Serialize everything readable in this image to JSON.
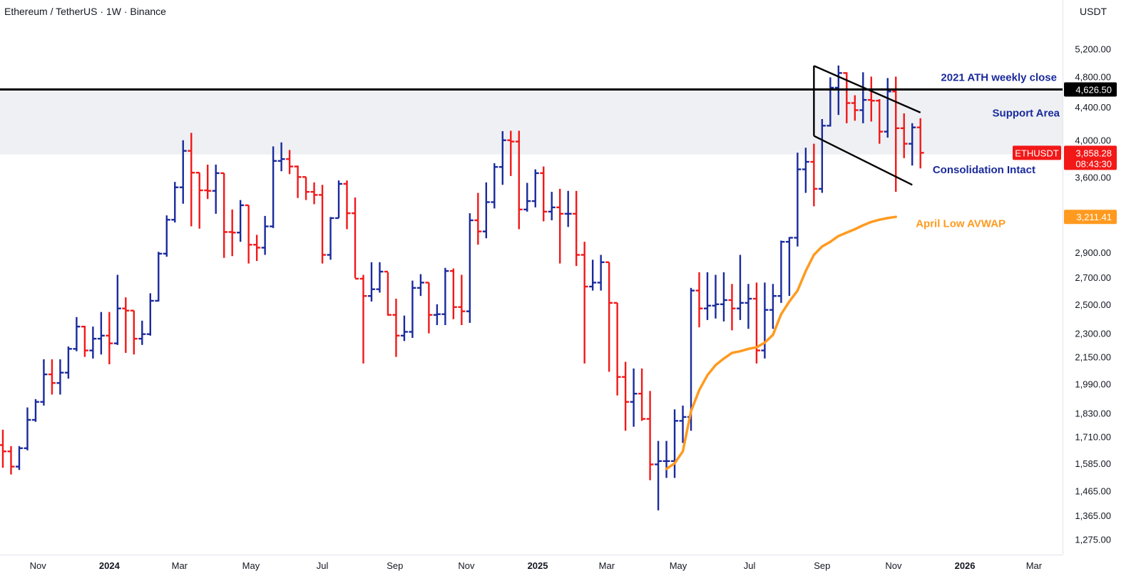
{
  "header": {
    "title": "Ethereum / TetherUS · 1W · Binance",
    "currency": "USDT"
  },
  "chart_data": {
    "type": "ohlc",
    "interval": "1W",
    "symbol": "ETHUSDT",
    "y_axis": {
      "scale": "log",
      "range": [
        1220,
        5600
      ],
      "ticks": [
        "5,200.00",
        "4,800.00",
        "4,400.00",
        "4,000.00",
        "3,600.00",
        "2,900.00",
        "2,700.00",
        "2,500.00",
        "2,300.00",
        "2,150.00",
        "1,990.00",
        "1,830.00",
        "1,710.00",
        "1,585.00",
        "1,465.00",
        "1,365.00",
        "1,275.00"
      ]
    },
    "x_axis": {
      "range": [
        "2023-10-02",
        "2026-03-23"
      ],
      "ticks": [
        {
          "label": "Nov",
          "date": "2023-11-01",
          "bold": false
        },
        {
          "label": "2024",
          "date": "2024-01-01",
          "bold": true
        },
        {
          "label": "Mar",
          "date": "2024-03-01",
          "bold": false
        },
        {
          "label": "May",
          "date": "2024-05-01",
          "bold": false
        },
        {
          "label": "Jul",
          "date": "2024-07-01",
          "bold": false
        },
        {
          "label": "Sep",
          "date": "2024-09-01",
          "bold": false
        },
        {
          "label": "Nov",
          "date": "2024-11-01",
          "bold": false
        },
        {
          "label": "2025",
          "date": "2025-01-01",
          "bold": true
        },
        {
          "label": "Mar",
          "date": "2025-03-01",
          "bold": false
        },
        {
          "label": "May",
          "date": "2025-05-01",
          "bold": false
        },
        {
          "label": "Jul",
          "date": "2025-07-01",
          "bold": false
        },
        {
          "label": "Sep",
          "date": "2025-09-01",
          "bold": false
        },
        {
          "label": "Nov",
          "date": "2025-11-01",
          "bold": false
        },
        {
          "label": "2026",
          "date": "2026-01-01",
          "bold": true
        },
        {
          "label": "Mar",
          "date": "2026-03-01",
          "bold": false
        }
      ]
    },
    "colors": {
      "up": "#1a2a9c",
      "down": "#f21818",
      "avwap": "#ff9a1f",
      "zone": "#eef0f3",
      "level": "#000000"
    },
    "ohlc": [
      {
        "date": "2023-10-02",
        "o": 1670,
        "h": 1745,
        "l": 1565,
        "c": 1640
      },
      {
        "date": "2023-10-09",
        "o": 1640,
        "h": 1665,
        "l": 1535,
        "c": 1570
      },
      {
        "date": "2023-10-16",
        "o": 1570,
        "h": 1665,
        "l": 1555,
        "c": 1655
      },
      {
        "date": "2023-10-23",
        "o": 1655,
        "h": 1860,
        "l": 1645,
        "c": 1795
      },
      {
        "date": "2023-10-30",
        "o": 1795,
        "h": 1905,
        "l": 1785,
        "c": 1890
      },
      {
        "date": "2023-11-06",
        "o": 1890,
        "h": 2135,
        "l": 1870,
        "c": 2045
      },
      {
        "date": "2023-11-13",
        "o": 2045,
        "h": 2135,
        "l": 1930,
        "c": 1995
      },
      {
        "date": "2023-11-20",
        "o": 1995,
        "h": 2135,
        "l": 1930,
        "c": 2055
      },
      {
        "date": "2023-11-27",
        "o": 2055,
        "h": 2215,
        "l": 2020,
        "c": 2200
      },
      {
        "date": "2023-12-04",
        "o": 2200,
        "h": 2410,
        "l": 2185,
        "c": 2345
      },
      {
        "date": "2023-12-11",
        "o": 2345,
        "h": 2350,
        "l": 2150,
        "c": 2190
      },
      {
        "date": "2023-12-18",
        "o": 2190,
        "h": 2345,
        "l": 2140,
        "c": 2265
      },
      {
        "date": "2023-12-25",
        "o": 2265,
        "h": 2445,
        "l": 2165,
        "c": 2285
      },
      {
        "date": "2024-01-01",
        "o": 2285,
        "h": 2445,
        "l": 2105,
        "c": 2235
      },
      {
        "date": "2024-01-08",
        "o": 2235,
        "h": 2720,
        "l": 2225,
        "c": 2470
      },
      {
        "date": "2024-01-15",
        "o": 2470,
        "h": 2550,
        "l": 2175,
        "c": 2455
      },
      {
        "date": "2024-01-22",
        "o": 2455,
        "h": 2455,
        "l": 2165,
        "c": 2265
      },
      {
        "date": "2024-01-29",
        "o": 2265,
        "h": 2385,
        "l": 2225,
        "c": 2295
      },
      {
        "date": "2024-02-05",
        "o": 2295,
        "h": 2580,
        "l": 2285,
        "c": 2525
      },
      {
        "date": "2024-02-12",
        "o": 2525,
        "h": 2905,
        "l": 2520,
        "c": 2890
      },
      {
        "date": "2024-02-19",
        "o": 2890,
        "h": 3225,
        "l": 2865,
        "c": 3185
      },
      {
        "date": "2024-02-26",
        "o": 3185,
        "h": 3550,
        "l": 3160,
        "c": 3495
      },
      {
        "date": "2024-03-04",
        "o": 3495,
        "h": 4000,
        "l": 3335,
        "c": 3880
      },
      {
        "date": "2024-03-11",
        "o": 3880,
        "h": 4085,
        "l": 3125,
        "c": 3645
      },
      {
        "date": "2024-03-18",
        "o": 3645,
        "h": 3645,
        "l": 3105,
        "c": 3465
      },
      {
        "date": "2024-03-25",
        "o": 3465,
        "h": 3730,
        "l": 3380,
        "c": 3460
      },
      {
        "date": "2024-04-01",
        "o": 3460,
        "h": 3730,
        "l": 3240,
        "c": 3640
      },
      {
        "date": "2024-04-08",
        "o": 3640,
        "h": 3640,
        "l": 2855,
        "c": 3075
      },
      {
        "date": "2024-04-15",
        "o": 3075,
        "h": 3280,
        "l": 2870,
        "c": 3070
      },
      {
        "date": "2024-04-22",
        "o": 3070,
        "h": 3370,
        "l": 2990,
        "c": 3320
      },
      {
        "date": "2024-04-29",
        "o": 3320,
        "h": 3320,
        "l": 2810,
        "c": 2965
      },
      {
        "date": "2024-05-06",
        "o": 2965,
        "h": 3050,
        "l": 2830,
        "c": 2940
      },
      {
        "date": "2024-05-13",
        "o": 2940,
        "h": 3220,
        "l": 2880,
        "c": 3125
      },
      {
        "date": "2024-05-20",
        "o": 3125,
        "h": 3930,
        "l": 3110,
        "c": 3770
      },
      {
        "date": "2024-05-27",
        "o": 3770,
        "h": 3975,
        "l": 3660,
        "c": 3790
      },
      {
        "date": "2024-06-03",
        "o": 3790,
        "h": 3890,
        "l": 3630,
        "c": 3710
      },
      {
        "date": "2024-06-10",
        "o": 3710,
        "h": 3720,
        "l": 3390,
        "c": 3600
      },
      {
        "date": "2024-06-17",
        "o": 3600,
        "h": 3600,
        "l": 3370,
        "c": 3450
      },
      {
        "date": "2024-06-24",
        "o": 3450,
        "h": 3545,
        "l": 3330,
        "c": 3420
      },
      {
        "date": "2024-07-01",
        "o": 3420,
        "h": 3520,
        "l": 2810,
        "c": 2880
      },
      {
        "date": "2024-07-08",
        "o": 2880,
        "h": 3210,
        "l": 2840,
        "c": 3200
      },
      {
        "date": "2024-07-15",
        "o": 3200,
        "h": 3565,
        "l": 3200,
        "c": 3530
      },
      {
        "date": "2024-07-22",
        "o": 3530,
        "h": 3565,
        "l": 3100,
        "c": 3245
      },
      {
        "date": "2024-07-29",
        "o": 3245,
        "h": 3395,
        "l": 2695,
        "c": 2690
      },
      {
        "date": "2024-08-05",
        "o": 2690,
        "h": 2720,
        "l": 2110,
        "c": 2560
      },
      {
        "date": "2024-08-12",
        "o": 2560,
        "h": 2820,
        "l": 2520,
        "c": 2610
      },
      {
        "date": "2024-08-19",
        "o": 2610,
        "h": 2820,
        "l": 2585,
        "c": 2745
      },
      {
        "date": "2024-08-26",
        "o": 2745,
        "h": 2740,
        "l": 2420,
        "c": 2425
      },
      {
        "date": "2024-09-02",
        "o": 2425,
        "h": 2540,
        "l": 2150,
        "c": 2285
      },
      {
        "date": "2024-09-09",
        "o": 2285,
        "h": 2420,
        "l": 2250,
        "c": 2310
      },
      {
        "date": "2024-09-16",
        "o": 2310,
        "h": 2675,
        "l": 2270,
        "c": 2620
      },
      {
        "date": "2024-09-23",
        "o": 2620,
        "h": 2725,
        "l": 2560,
        "c": 2660
      },
      {
        "date": "2024-09-30",
        "o": 2660,
        "h": 2660,
        "l": 2300,
        "c": 2425
      },
      {
        "date": "2024-10-07",
        "o": 2425,
        "h": 2500,
        "l": 2355,
        "c": 2430
      },
      {
        "date": "2024-10-14",
        "o": 2430,
        "h": 2775,
        "l": 2355,
        "c": 2750
      },
      {
        "date": "2024-10-21",
        "o": 2750,
        "h": 2770,
        "l": 2395,
        "c": 2480
      },
      {
        "date": "2024-10-28",
        "o": 2480,
        "h": 2720,
        "l": 2355,
        "c": 2450
      },
      {
        "date": "2024-11-04",
        "o": 2450,
        "h": 3245,
        "l": 2370,
        "c": 3180
      },
      {
        "date": "2024-11-11",
        "o": 3180,
        "h": 3440,
        "l": 2965,
        "c": 3080
      },
      {
        "date": "2024-11-18",
        "o": 3080,
        "h": 3545,
        "l": 3020,
        "c": 3350
      },
      {
        "date": "2024-11-25",
        "o": 3350,
        "h": 3745,
        "l": 3290,
        "c": 3705
      },
      {
        "date": "2024-12-02",
        "o": 3705,
        "h": 4105,
        "l": 3520,
        "c": 4000
      },
      {
        "date": "2024-12-09",
        "o": 4000,
        "h": 4110,
        "l": 3610,
        "c": 3985
      },
      {
        "date": "2024-12-16",
        "o": 3985,
        "h": 4110,
        "l": 3100,
        "c": 3280
      },
      {
        "date": "2024-12-23",
        "o": 3280,
        "h": 3540,
        "l": 3260,
        "c": 3360
      },
      {
        "date": "2024-12-30",
        "o": 3360,
        "h": 3680,
        "l": 3300,
        "c": 3640
      },
      {
        "date": "2025-01-06",
        "o": 3640,
        "h": 3710,
        "l": 3170,
        "c": 3260
      },
      {
        "date": "2025-01-13",
        "o": 3260,
        "h": 3450,
        "l": 3180,
        "c": 3300
      },
      {
        "date": "2025-01-20",
        "o": 3300,
        "h": 3480,
        "l": 2810,
        "c": 3240
      },
      {
        "date": "2025-01-27",
        "o": 3240,
        "h": 3460,
        "l": 3120,
        "c": 3240
      },
      {
        "date": "2025-02-03",
        "o": 3240,
        "h": 3460,
        "l": 2790,
        "c": 2880
      },
      {
        "date": "2025-02-10",
        "o": 2880,
        "h": 2990,
        "l": 2110,
        "c": 2630
      },
      {
        "date": "2025-02-17",
        "o": 2630,
        "h": 2840,
        "l": 2600,
        "c": 2660
      },
      {
        "date": "2025-02-24",
        "o": 2660,
        "h": 2880,
        "l": 2600,
        "c": 2820
      },
      {
        "date": "2025-03-03",
        "o": 2820,
        "h": 2820,
        "l": 2060,
        "c": 2510
      },
      {
        "date": "2025-03-10",
        "o": 2510,
        "h": 2510,
        "l": 1925,
        "c": 2030
      },
      {
        "date": "2025-03-17",
        "o": 2030,
        "h": 2120,
        "l": 1740,
        "c": 1890
      },
      {
        "date": "2025-03-24",
        "o": 1890,
        "h": 2080,
        "l": 1760,
        "c": 1935
      },
      {
        "date": "2025-03-31",
        "o": 1935,
        "h": 2080,
        "l": 1790,
        "c": 1800
      },
      {
        "date": "2025-04-07",
        "o": 1800,
        "h": 1950,
        "l": 1510,
        "c": 1580
      },
      {
        "date": "2025-04-14",
        "o": 1580,
        "h": 1690,
        "l": 1385,
        "c": 1595
      },
      {
        "date": "2025-04-21",
        "o": 1595,
        "h": 1690,
        "l": 1520,
        "c": 1595
      },
      {
        "date": "2025-04-28",
        "o": 1595,
        "h": 1850,
        "l": 1520,
        "c": 1790
      },
      {
        "date": "2025-05-05",
        "o": 1790,
        "h": 1870,
        "l": 1680,
        "c": 1810
      },
      {
        "date": "2025-05-12",
        "o": 1810,
        "h": 2620,
        "l": 1740,
        "c": 2600
      },
      {
        "date": "2025-05-19",
        "o": 2600,
        "h": 2740,
        "l": 2340,
        "c": 2470
      },
      {
        "date": "2025-05-26",
        "o": 2470,
        "h": 2740,
        "l": 2390,
        "c": 2490
      },
      {
        "date": "2025-06-02",
        "o": 2490,
        "h": 2720,
        "l": 2400,
        "c": 2500
      },
      {
        "date": "2025-06-09",
        "o": 2500,
        "h": 2740,
        "l": 2380,
        "c": 2530
      },
      {
        "date": "2025-06-16",
        "o": 2530,
        "h": 2650,
        "l": 2320,
        "c": 2470
      },
      {
        "date": "2025-06-23",
        "o": 2470,
        "h": 2880,
        "l": 2390,
        "c": 2510
      },
      {
        "date": "2025-06-30",
        "o": 2510,
        "h": 2650,
        "l": 2330,
        "c": 2540
      },
      {
        "date": "2025-07-07",
        "o": 2540,
        "h": 2660,
        "l": 2110,
        "c": 2190
      },
      {
        "date": "2025-07-14",
        "o": 2190,
        "h": 2660,
        "l": 2140,
        "c": 2460
      },
      {
        "date": "2025-07-21",
        "o": 2460,
        "h": 2650,
        "l": 2330,
        "c": 2560
      },
      {
        "date": "2025-07-28",
        "o": 2560,
        "h": 3000,
        "l": 2510,
        "c": 2990
      },
      {
        "date": "2025-08-04",
        "o": 2990,
        "h": 3030,
        "l": 2560,
        "c": 3025
      },
      {
        "date": "2025-08-11",
        "o": 3025,
        "h": 3860,
        "l": 2950,
        "c": 3680
      },
      {
        "date": "2025-08-18",
        "o": 3680,
        "h": 3915,
        "l": 3440,
        "c": 3760
      },
      {
        "date": "2025-08-25",
        "o": 3760,
        "h": 3960,
        "l": 3310,
        "c": 3480
      },
      {
        "date": "2025-09-01",
        "o": 3480,
        "h": 4250,
        "l": 3440,
        "c": 4170
      },
      {
        "date": "2025-09-08",
        "o": 4170,
        "h": 4790,
        "l": 4160,
        "c": 4650
      },
      {
        "date": "2025-09-15",
        "o": 4650,
        "h": 4955,
        "l": 4300,
        "c": 4850
      },
      {
        "date": "2025-09-22",
        "o": 4850,
        "h": 4860,
        "l": 4200,
        "c": 4450
      },
      {
        "date": "2025-09-29",
        "o": 4450,
        "h": 4550,
        "l": 4230,
        "c": 4360
      },
      {
        "date": "2025-10-06",
        "o": 4360,
        "h": 4860,
        "l": 4200,
        "c": 4490
      },
      {
        "date": "2025-10-13",
        "o": 4490,
        "h": 4800,
        "l": 4220,
        "c": 4480
      },
      {
        "date": "2025-10-20",
        "o": 4480,
        "h": 4500,
        "l": 3960,
        "c": 4100
      },
      {
        "date": "2025-10-27",
        "o": 4100,
        "h": 4780,
        "l": 4030,
        "c": 4600
      },
      {
        "date": "2025-11-03",
        "o": 4600,
        "h": 4800,
        "l": 3450,
        "c": 4140
      },
      {
        "date": "2025-11-10",
        "o": 4140,
        "h": 4320,
        "l": 3800,
        "c": 3960
      },
      {
        "date": "2025-11-17",
        "o": 3960,
        "h": 4200,
        "l": 3720,
        "c": 4150
      },
      {
        "date": "2025-11-24",
        "o": 4150,
        "h": 4260,
        "l": 3690,
        "c": 3858.28
      }
    ],
    "levels": [
      {
        "name": "2021 ATH weekly close",
        "value": 4626.5,
        "value_label": "4,626.50"
      }
    ],
    "zones": [
      {
        "name": "Support Area",
        "from": 3840,
        "to": 4626.5
      }
    ],
    "avwap": {
      "name": "April Low AVWAP",
      "value_label": "3,211.41",
      "points": [
        {
          "date": "2025-04-21",
          "v": 1560
        },
        {
          "date": "2025-04-28",
          "v": 1585
        },
        {
          "date": "2025-05-05",
          "v": 1640
        },
        {
          "date": "2025-05-12",
          "v": 1840
        },
        {
          "date": "2025-05-19",
          "v": 1955
        },
        {
          "date": "2025-05-26",
          "v": 2040
        },
        {
          "date": "2025-06-02",
          "v": 2100
        },
        {
          "date": "2025-06-09",
          "v": 2140
        },
        {
          "date": "2025-06-16",
          "v": 2175
        },
        {
          "date": "2025-06-23",
          "v": 2185
        },
        {
          "date": "2025-06-30",
          "v": 2200
        },
        {
          "date": "2025-07-07",
          "v": 2210
        },
        {
          "date": "2025-07-14",
          "v": 2240
        },
        {
          "date": "2025-07-21",
          "v": 2290
        },
        {
          "date": "2025-07-28",
          "v": 2430
        },
        {
          "date": "2025-08-04",
          "v": 2520
        },
        {
          "date": "2025-08-11",
          "v": 2600
        },
        {
          "date": "2025-08-18",
          "v": 2750
        },
        {
          "date": "2025-08-25",
          "v": 2880
        },
        {
          "date": "2025-09-01",
          "v": 2950
        },
        {
          "date": "2025-09-08",
          "v": 2990
        },
        {
          "date": "2025-09-15",
          "v": 3040
        },
        {
          "date": "2025-09-22",
          "v": 3070
        },
        {
          "date": "2025-09-29",
          "v": 3100
        },
        {
          "date": "2025-10-06",
          "v": 3135
        },
        {
          "date": "2025-10-13",
          "v": 3165
        },
        {
          "date": "2025-10-20",
          "v": 3185
        },
        {
          "date": "2025-10-27",
          "v": 3200
        },
        {
          "date": "2025-11-03",
          "v": 3211.41
        }
      ]
    },
    "channel": {
      "name": "Consolidation Intact",
      "upper": [
        {
          "date": "2025-08-25",
          "v": 4950
        },
        {
          "date": "2025-11-24",
          "v": 4330
        }
      ],
      "lower": [
        {
          "date": "2025-08-25",
          "v": 4050
        },
        {
          "date": "2025-11-17",
          "v": 3520
        }
      ]
    },
    "annotations": [
      {
        "text": "2021 ATH weekly close",
        "color": "#1a2a9c"
      },
      {
        "text": "Support Area",
        "color": "#1a2a9c"
      },
      {
        "text": "Consolidation Intact",
        "color": "#1a2a9c"
      },
      {
        "text": "April Low AVWAP",
        "color": "#ff9a1f"
      }
    ],
    "last_price": {
      "symbol": "ETHUSDT",
      "price": "3,858.28",
      "countdown": "08:43:30",
      "color": "#f21818"
    }
  }
}
